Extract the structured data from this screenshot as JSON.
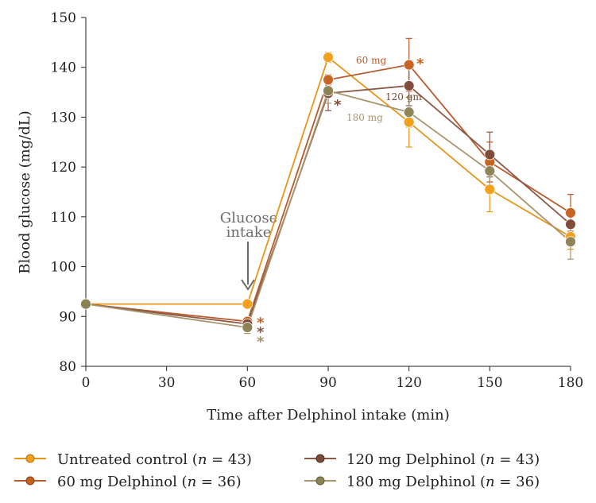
{
  "chart_data": {
    "type": "line",
    "title": "",
    "xlabel": "Time after Delphinol intake (min)",
    "ylabel": "Blood glucose (mg/dL)",
    "x": [
      0,
      30,
      60,
      90,
      120,
      150,
      180
    ],
    "x_ticks": [
      "0",
      "30",
      "60",
      "90",
      "120",
      "150",
      "180"
    ],
    "y_ticks": [
      "80",
      "90",
      "100",
      "110",
      "120",
      "130",
      "140",
      "150"
    ],
    "xlim": [
      0,
      180
    ],
    "ylim": [
      80,
      150
    ],
    "grid": false,
    "legend_position": "bottom",
    "series": [
      {
        "name": "Untreated control (n = 43)",
        "name_prefix": "Untreated control (",
        "name_n": "n",
        "name_suffix": " = 43)",
        "color": "#e8961a",
        "fill": "#f2a019",
        "x": [
          0,
          60,
          90,
          120,
          150,
          180
        ],
        "y": [
          92.5,
          92.5,
          142.0,
          129.0,
          115.5,
          106.0
        ],
        "err": [
          0.8,
          0.8,
          1.0,
          5.0,
          4.5,
          2.5
        ]
      },
      {
        "name": "60 mg Delphinol (n = 36)",
        "name_prefix": "60 mg Delphinol (",
        "name_n": "n",
        "name_suffix": " = 36)",
        "color": "#b85a2a",
        "fill": "#c6621f",
        "x": [
          0,
          60,
          90,
          120,
          150,
          180
        ],
        "y": [
          92.5,
          89.0,
          137.5,
          140.5,
          121.0,
          110.8
        ],
        "err": [
          0.8,
          0.8,
          1.0,
          5.3,
          4.0,
          3.7
        ]
      },
      {
        "name": "120 mg Delphinol (n = 43)",
        "name_prefix": "120 mg Delphinol (",
        "name_n": "n",
        "name_suffix": " = 43)",
        "color": "#8a5a48",
        "fill": "#7d4a36",
        "x": [
          0,
          60,
          90,
          120,
          150,
          180
        ],
        "y": [
          92.5,
          88.5,
          134.8,
          136.3,
          122.5,
          108.5
        ],
        "err": [
          0.8,
          0.8,
          3.5,
          4.0,
          4.5,
          3.0
        ]
      },
      {
        "name": "180 mg Delphinol (n = 36)",
        "name_prefix": "180 mg Delphinol (",
        "name_n": "n",
        "name_suffix": " = 36)",
        "color": "#a8946c",
        "fill": "#8c8456",
        "x": [
          0,
          60,
          90,
          120,
          150,
          180
        ],
        "y": [
          92.5,
          87.8,
          135.3,
          131.0,
          119.2,
          105.0
        ],
        "err": [
          0.8,
          1.2,
          2.5,
          3.0,
          3.5,
          3.5
        ]
      }
    ],
    "annotations": {
      "glucose_intake": [
        "Glucose",
        "intake"
      ],
      "label_60": "60 mg",
      "label_120": "120 gm",
      "label_180": "180 mg",
      "star": "*"
    }
  }
}
